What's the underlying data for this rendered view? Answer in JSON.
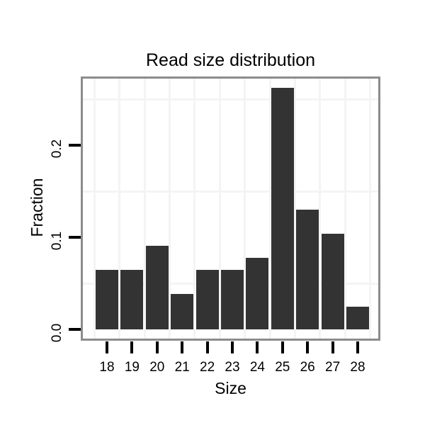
{
  "chart_data": {
    "type": "bar",
    "title": "Read size distribution",
    "xlabel": "Size",
    "ylabel": "Fraction",
    "categories": [
      "18",
      "19",
      "20",
      "21",
      "22",
      "23",
      "24",
      "25",
      "26",
      "27",
      "28"
    ],
    "values": [
      0.065,
      0.065,
      0.091,
      0.0385,
      0.065,
      0.065,
      0.078,
      0.262,
      0.13,
      0.104,
      0.025
    ],
    "y_ticks": [
      {
        "value": 0.0,
        "label": "0.0"
      },
      {
        "value": 0.1,
        "label": "0.1"
      },
      {
        "value": 0.2,
        "label": "0.2"
      }
    ],
    "minor_y_gridlines": [
      0.05,
      0.15,
      0.25
    ],
    "ylim": [
      -0.0115,
      0.273
    ],
    "grid": "minor gridlines only, very faint; vertical minors at category boundaries",
    "legend": "none",
    "colors": {
      "bar_fill": "#333333",
      "panel_border": "#8c8c8c",
      "gridline": "#f4f4f4",
      "tick": "#000000",
      "text": "#000000",
      "background": "#ffffff"
    }
  }
}
